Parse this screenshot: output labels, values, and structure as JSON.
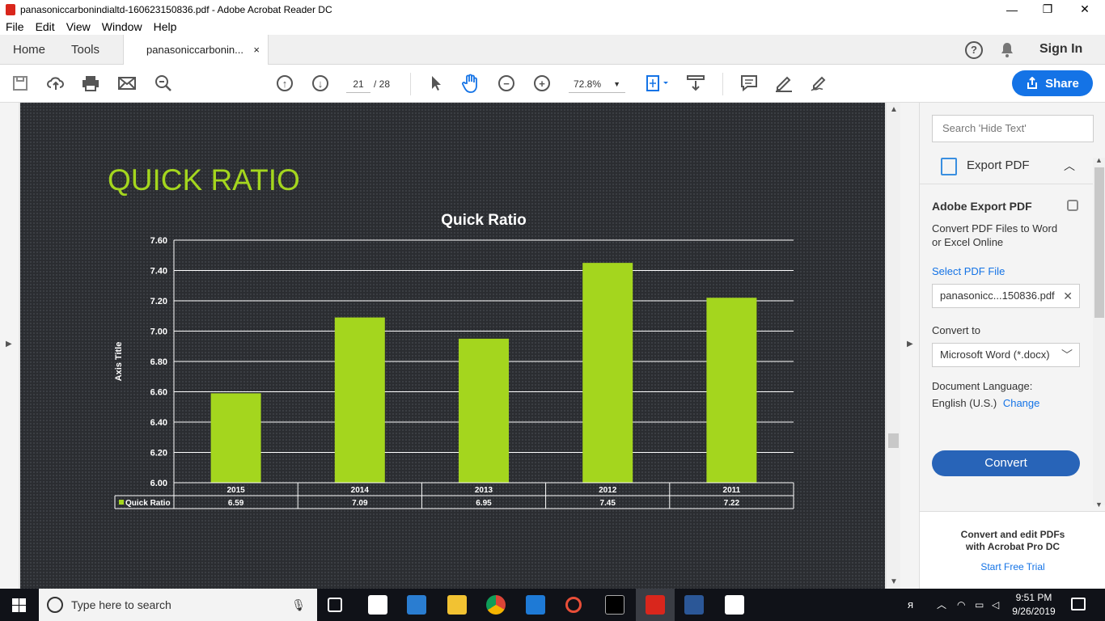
{
  "window": {
    "title": "panasoniccarbonindialtd-160623150836.pdf - Adobe Acrobat Reader DC",
    "minimize": "—",
    "restore": "❐",
    "close": "✕"
  },
  "menu": [
    "File",
    "Edit",
    "View",
    "Window",
    "Help"
  ],
  "tabs": {
    "home": "Home",
    "tools": "Tools",
    "document": "panasoniccarbonin...",
    "close": "×"
  },
  "header": {
    "help": "?",
    "sign_in": "Sign In"
  },
  "toolbar": {
    "page_current": "21",
    "page_total": "/ 28",
    "zoom": "72.8%",
    "share": "Share"
  },
  "page": {
    "heading": "QUICK RATIO",
    "heading_color": "#a4d61e",
    "bar_color": "#a4d61e"
  },
  "chart_data": {
    "type": "bar",
    "title": "Quick Ratio",
    "ylabel": "Axis Title",
    "xlabel": "",
    "categories": [
      "2015",
      "2014",
      "2013",
      "2012",
      "2011"
    ],
    "series": [
      {
        "name": "Quick Ratio",
        "values": [
          6.59,
          7.09,
          6.95,
          7.45,
          7.22
        ]
      }
    ],
    "value_labels": [
      "6.59",
      "7.09",
      "6.95",
      "7.45",
      "7.22"
    ],
    "ylim": [
      6.0,
      7.6
    ],
    "yticks": [
      "7.60",
      "7.40",
      "7.20",
      "7.00",
      "6.80",
      "6.60",
      "6.40",
      "6.20",
      "6.00"
    ],
    "grid": true,
    "legend": "data-table"
  },
  "right_panel": {
    "search_placeholder": "Search 'Hide Text'",
    "export_title": "Export PDF",
    "adobe_export": "Adobe Export PDF",
    "desc_line1": "Convert PDF Files to Word",
    "desc_line2": "or Excel Online",
    "select_file": "Select PDF File",
    "file_name": "panasonicc...150836.pdf",
    "convert_to": "Convert to",
    "format": "Microsoft Word (*.docx)",
    "doc_lang": "Document Language:",
    "lang": "English (U.S.)",
    "change": "Change",
    "convert_button": "Convert",
    "promo_line1": "Convert and edit PDFs",
    "promo_line2": "with Acrobat Pro DC",
    "promo_link": "Start Free Trial"
  },
  "taskbar": {
    "search_placeholder": "Type here to search",
    "time": "9:51 PM",
    "date": "9/26/2019"
  }
}
